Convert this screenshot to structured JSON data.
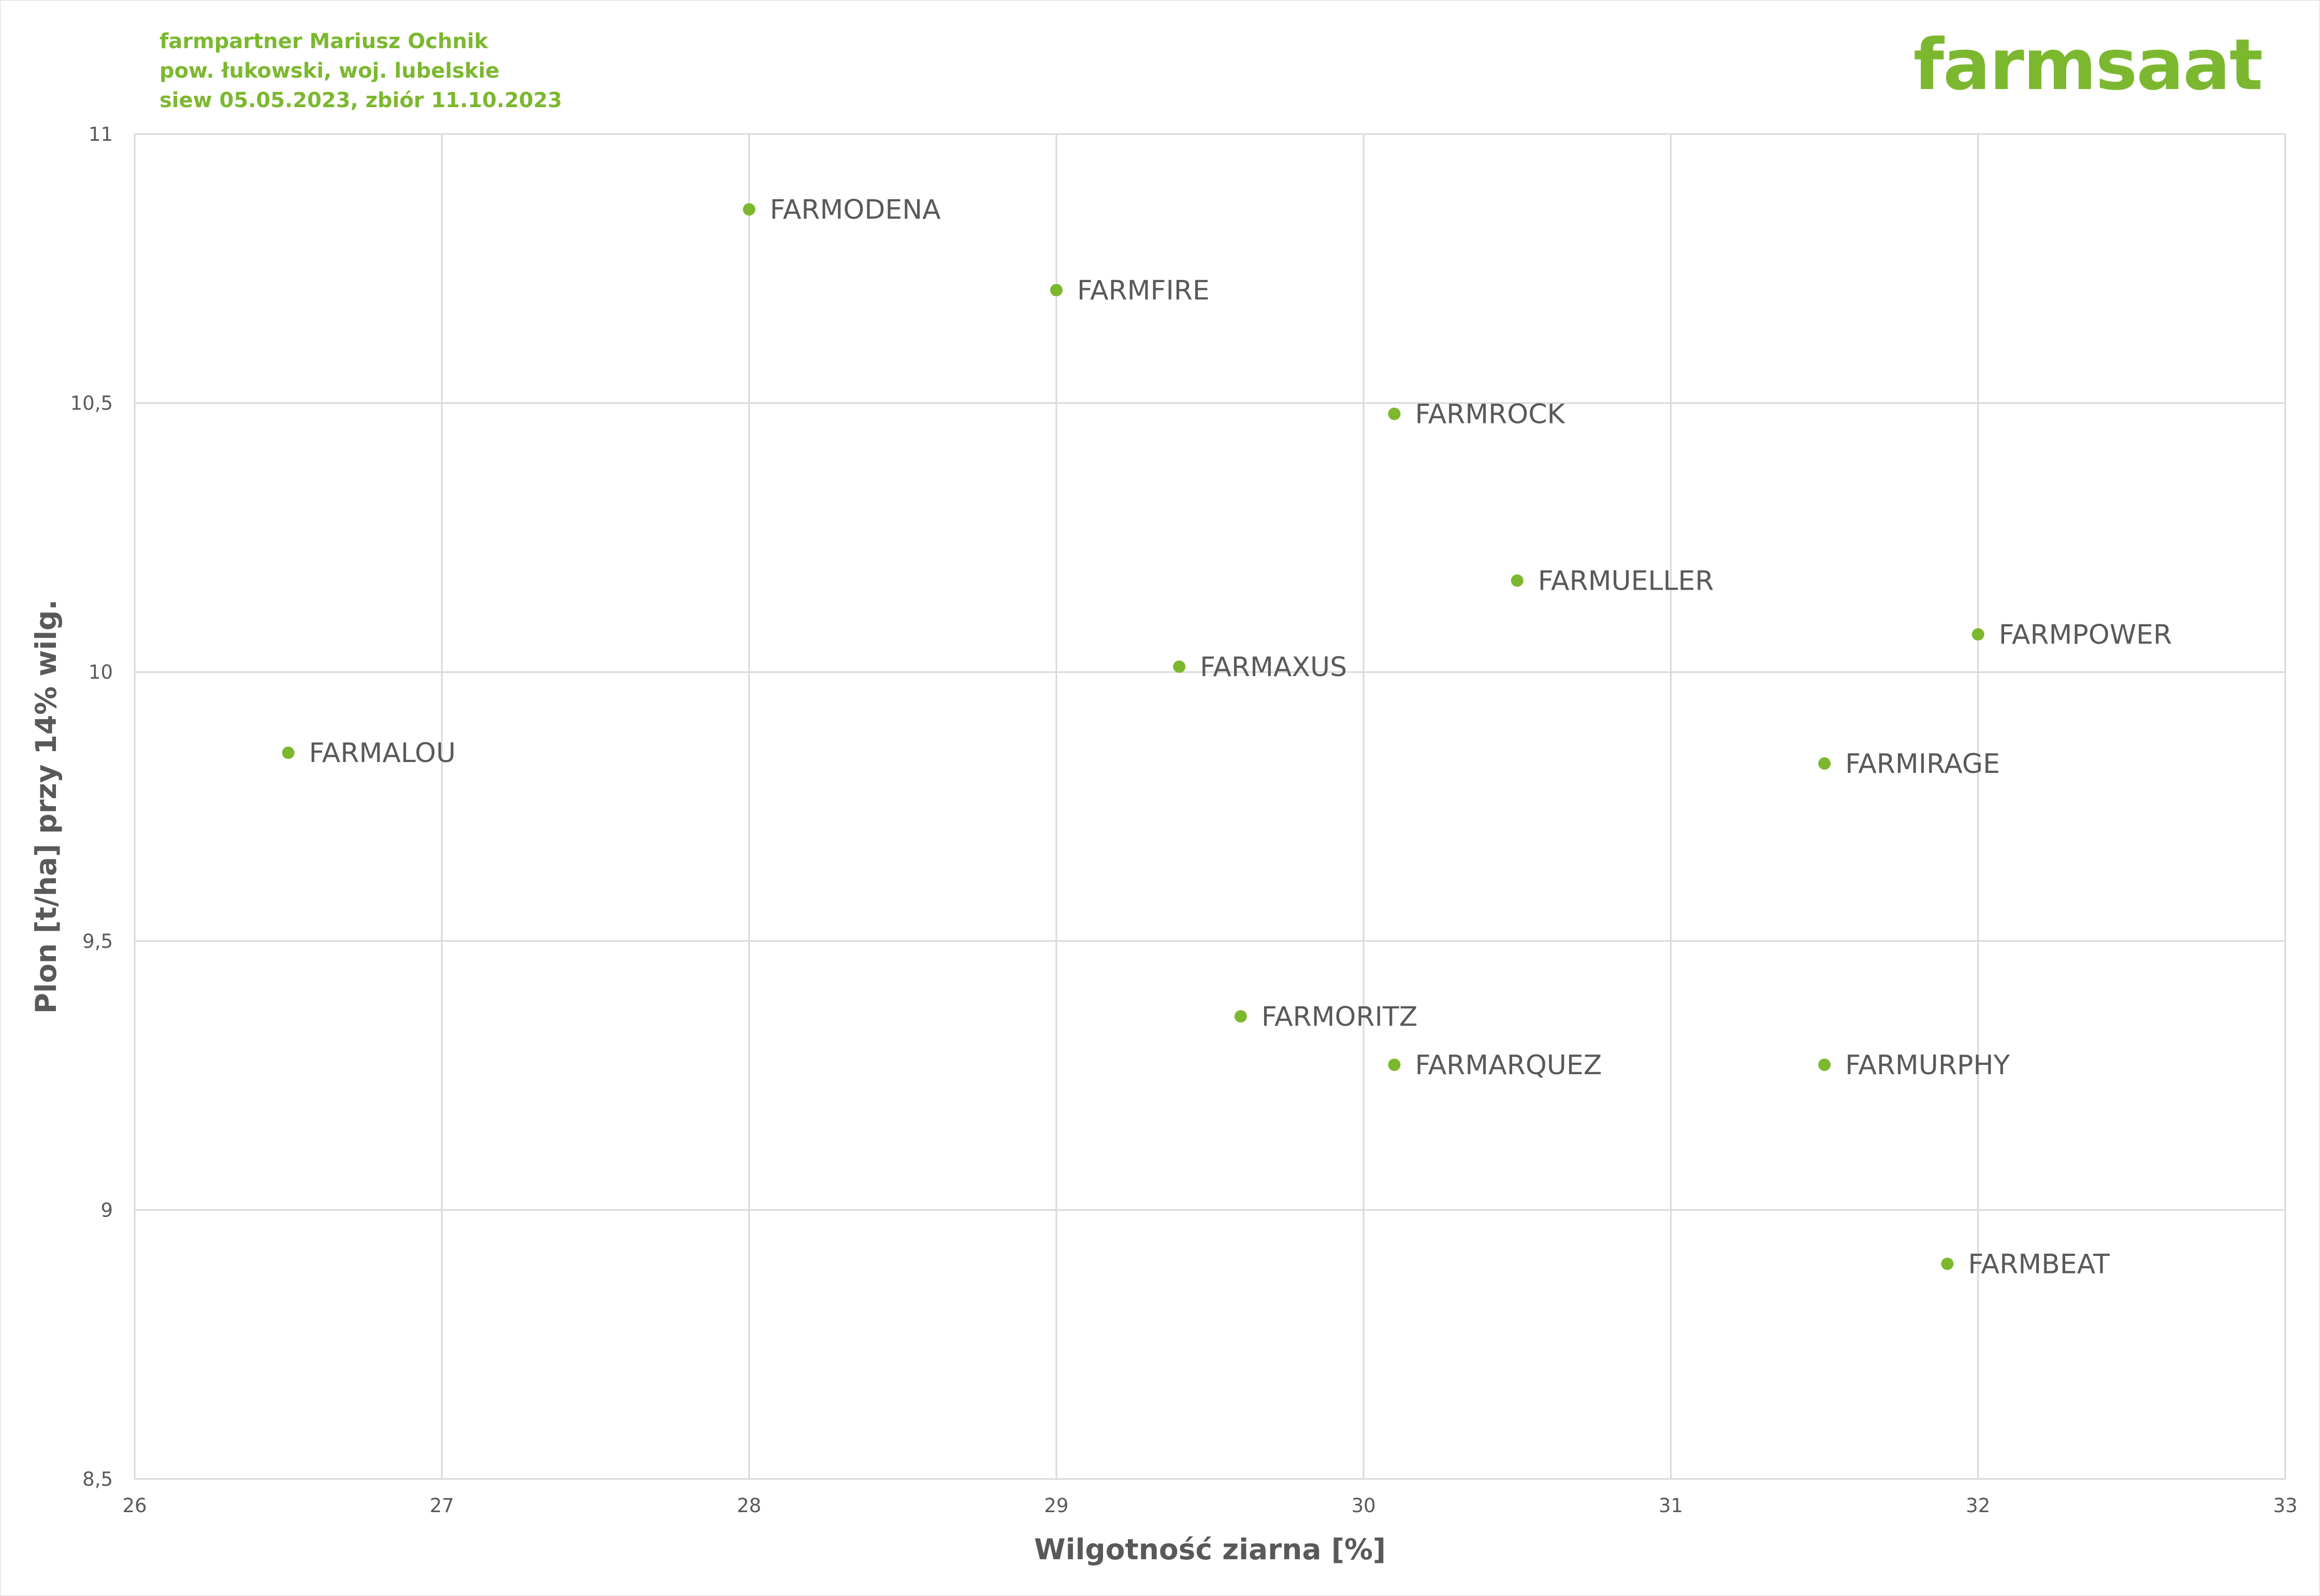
{
  "header": {
    "info_lines": [
      "farmpartner Mariusz Ochnik",
      "pow. łukowski, woj. lubelskie",
      "siew 05.05.2023, zbiór 11.10.2023"
    ],
    "logo_text": "farmsaat"
  },
  "colors": {
    "accent": "#7cb82f",
    "grid": "#d9d9d9",
    "text": "#595959"
  },
  "chart_data": {
    "type": "scatter",
    "title": "",
    "xlabel": "Wilgotność ziarna [%]",
    "ylabel": "Plon [t/ha] przy 14% wilg.",
    "xlim": [
      26,
      33
    ],
    "ylim": [
      8.5,
      11
    ],
    "x_ticks": [
      26,
      27,
      28,
      29,
      30,
      31,
      32,
      33
    ],
    "y_ticks": [
      8.5,
      9,
      9.5,
      10,
      10.5,
      11
    ],
    "x_tick_labels": [
      "26",
      "27",
      "28",
      "29",
      "30",
      "31",
      "32",
      "33"
    ],
    "y_tick_labels": [
      "8,5",
      "9",
      "9,5",
      "10",
      "10,5",
      "11"
    ],
    "grid": true,
    "legend": "none",
    "points": [
      {
        "label": "FARMODENA",
        "x": 28.0,
        "y": 10.86
      },
      {
        "label": "FARMFIRE",
        "x": 29.0,
        "y": 10.71
      },
      {
        "label": "FARMROCK",
        "x": 30.1,
        "y": 10.48
      },
      {
        "label": "FARMUELLER",
        "x": 30.5,
        "y": 10.17
      },
      {
        "label": "FARMPOWER",
        "x": 32.0,
        "y": 10.07
      },
      {
        "label": "FARMAXUS",
        "x": 29.4,
        "y": 10.01
      },
      {
        "label": "FARMALOU",
        "x": 26.5,
        "y": 9.85
      },
      {
        "label": "FARMIRAGE",
        "x": 31.5,
        "y": 9.83
      },
      {
        "label": "FARMORITZ",
        "x": 29.6,
        "y": 9.36
      },
      {
        "label": "FARMARQUEZ",
        "x": 30.1,
        "y": 9.27
      },
      {
        "label": "FARMURPHY",
        "x": 31.5,
        "y": 9.27
      },
      {
        "label": "FARMBEAT",
        "x": 31.9,
        "y": 8.9
      }
    ]
  }
}
